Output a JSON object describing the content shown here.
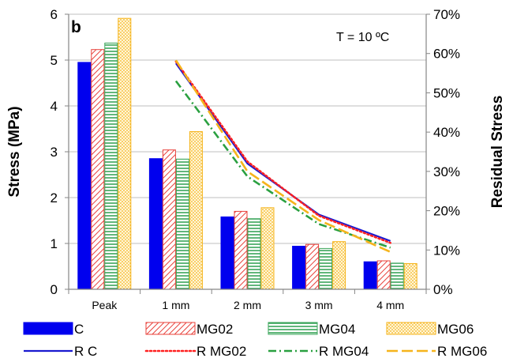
{
  "chart_data": {
    "type": "bar",
    "panel_label": "b",
    "annotation": "T = 10 ºC",
    "categories": [
      "Peak",
      "1 mm",
      "2 mm",
      "3 mm",
      "4 mm"
    ],
    "ylabel": "Stress (MPa)",
    "ylabel_right": "Residual Stress",
    "ylim": [
      0,
      6
    ],
    "yticks": [
      "0",
      "1",
      "2",
      "3",
      "4",
      "5",
      "6"
    ],
    "ylim_right": [
      0,
      70
    ],
    "yticks_right": [
      "0%",
      "10%",
      "20%",
      "30%",
      "40%",
      "50%",
      "60%",
      "70%"
    ],
    "grid": true,
    "legend_position": "bottom",
    "bar_series": [
      {
        "name": "C",
        "values": [
          4.95,
          2.85,
          1.58,
          0.94,
          0.6
        ],
        "color": "#0000ee",
        "pattern": "solid"
      },
      {
        "name": "MG02",
        "values": [
          5.23,
          3.04,
          1.7,
          0.98,
          0.62
        ],
        "color": "#e8403a",
        "pattern": "diagonal"
      },
      {
        "name": "MG04",
        "values": [
          5.37,
          2.84,
          1.54,
          0.89,
          0.57
        ],
        "color": "#3aa55a",
        "pattern": "horizontal"
      },
      {
        "name": "MG06",
        "values": [
          5.91,
          3.44,
          1.78,
          1.04,
          0.56
        ],
        "color": "#f5b41c",
        "pattern": "dotted"
      }
    ],
    "line_series": [
      {
        "name": "R C",
        "x": [
          "1 mm",
          "2 mm",
          "3 mm",
          "4 mm"
        ],
        "values": [
          57.5,
          32.0,
          19.0,
          12.3
        ],
        "color": "#1a1ad0",
        "dash": "solid"
      },
      {
        "name": "R MG02",
        "x": [
          "1 mm",
          "2 mm",
          "3 mm",
          "4 mm"
        ],
        "values": [
          58.0,
          32.5,
          18.7,
          11.8
        ],
        "color": "#ff2020",
        "dash": "dotted"
      },
      {
        "name": "R MG04",
        "x": [
          "1 mm",
          "2 mm",
          "3 mm",
          "4 mm"
        ],
        "values": [
          53.0,
          28.7,
          16.6,
          10.6
        ],
        "color": "#2aa040",
        "dash": "dashdot"
      },
      {
        "name": "R MG06",
        "x": [
          "1 mm",
          "2 mm",
          "3 mm",
          "4 mm"
        ],
        "values": [
          58.3,
          30.0,
          17.6,
          9.5
        ],
        "color": "#f5b41c",
        "dash": "longdash"
      }
    ]
  }
}
